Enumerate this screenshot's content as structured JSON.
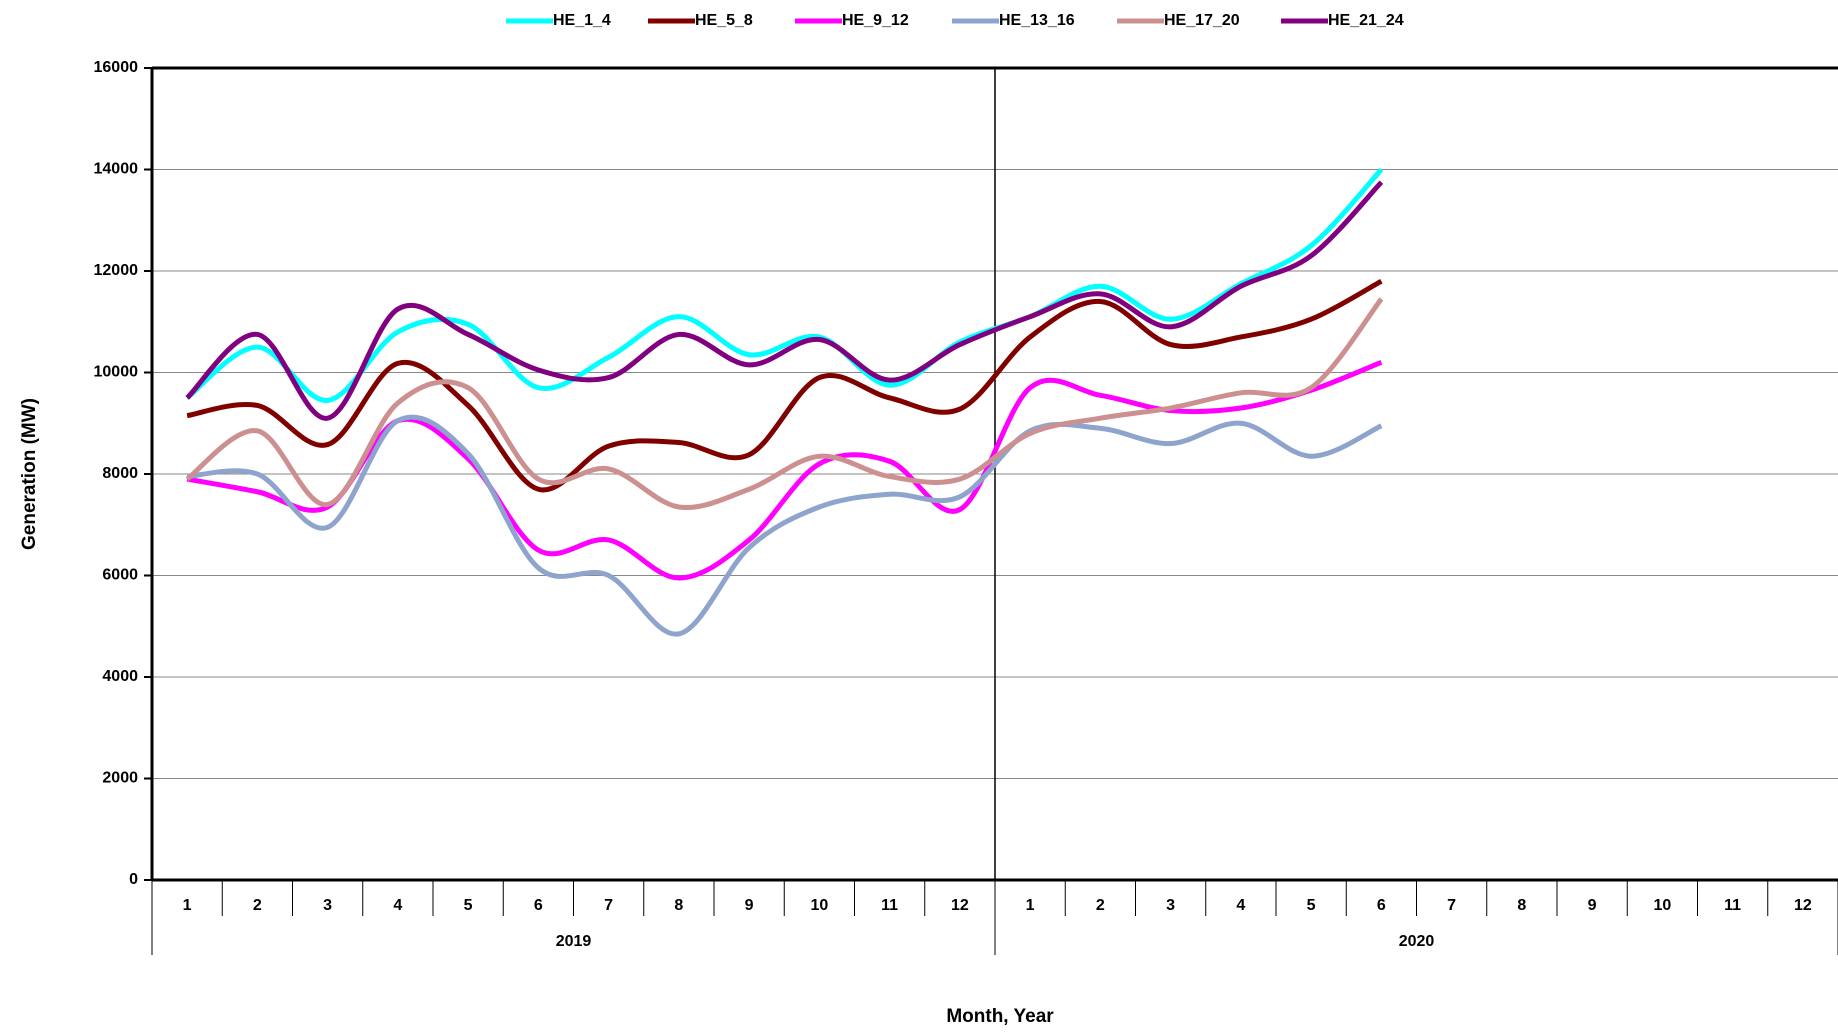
{
  "chart_data": {
    "type": "line",
    "x_label": "Month, Year",
    "y_label": "Generation (MW)",
    "categories": [
      "1",
      "2",
      "3",
      "4",
      "5",
      "6",
      "7",
      "8",
      "9",
      "10",
      "11",
      "12",
      "1",
      "2",
      "3",
      "4",
      "5",
      "6",
      "7",
      "8",
      "9",
      "10",
      "11",
      "12"
    ],
    "groups": [
      "2019",
      "2020"
    ],
    "ylim": [
      0,
      16000
    ],
    "yticks": [
      0,
      2000,
      4000,
      6000,
      8000,
      10000,
      12000,
      14000,
      16000
    ],
    "grid": true,
    "legend": "top",
    "series": [
      {
        "name": "HE_1_4",
        "color": "#00ffff",
        "values": [
          9500,
          10500,
          9450,
          10800,
          10950,
          9700,
          10300,
          11100,
          10350,
          10700,
          9750,
          10600,
          11100,
          11700,
          11050,
          11750,
          12500,
          14000,
          null,
          null,
          null,
          null,
          null,
          null
        ]
      },
      {
        "name": "HE_5_8",
        "color": "#800000",
        "values": [
          9150,
          9350,
          8580,
          10180,
          9350,
          7700,
          8550,
          8620,
          8380,
          9900,
          9500,
          9280,
          10700,
          11400,
          10550,
          10700,
          11050,
          11800,
          null,
          null,
          null,
          null,
          null,
          null
        ]
      },
      {
        "name": "HE_9_12",
        "color": "#ff00ff",
        "values": [
          7900,
          7650,
          7350,
          9050,
          8300,
          6500,
          6700,
          5950,
          6700,
          8200,
          8250,
          7300,
          9700,
          9550,
          9250,
          9300,
          9650,
          10200,
          null,
          null,
          null,
          null,
          null,
          null
        ]
      },
      {
        "name": "HE_13_16",
        "color": "#8ea4cc",
        "values": [
          7950,
          8000,
          6950,
          9050,
          8400,
          6150,
          6000,
          4850,
          6550,
          7350,
          7600,
          7550,
          8850,
          8900,
          8600,
          9000,
          8350,
          8950,
          null,
          null,
          null,
          null,
          null,
          null
        ]
      },
      {
        "name": "HE_17_20",
        "color": "#cc9090",
        "values": [
          7900,
          8850,
          7400,
          9400,
          9700,
          7900,
          8100,
          7350,
          7700,
          8350,
          7950,
          7900,
          8800,
          9100,
          9300,
          9600,
          9700,
          11450,
          null,
          null,
          null,
          null,
          null,
          null
        ]
      },
      {
        "name": "HE_21_24",
        "color": "#800080",
        "values": [
          9500,
          10750,
          9100,
          11250,
          10750,
          10050,
          9900,
          10750,
          10150,
          10650,
          9850,
          10550,
          11100,
          11550,
          10900,
          11700,
          12300,
          13750,
          null,
          null,
          null,
          null,
          null,
          null
        ]
      }
    ]
  }
}
